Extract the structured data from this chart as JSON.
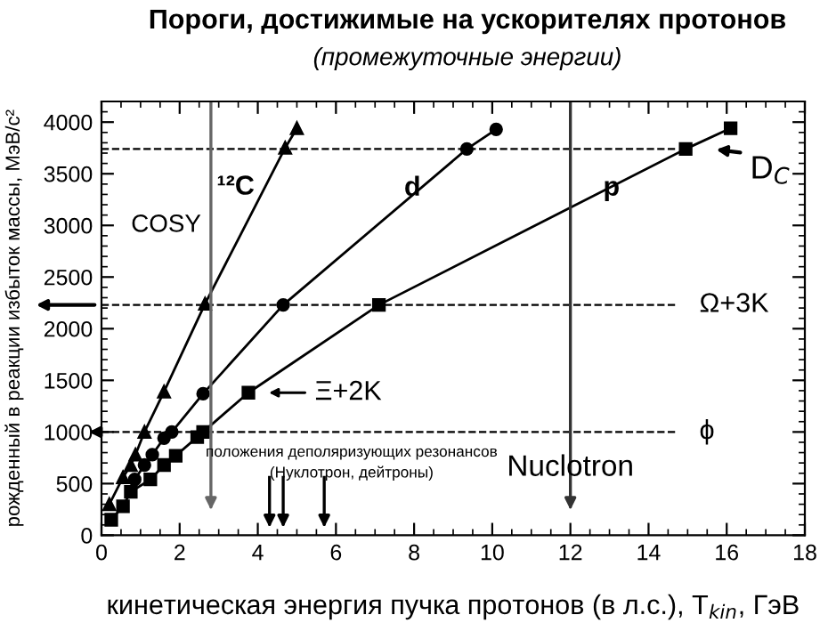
{
  "chart_data": {
    "type": "line",
    "title": "Пороги, достижимые на ускорителях протонов",
    "subtitle": "(промежуточные энергии)",
    "xlabel": "кинетическая энергия пучка протонов (в л.с.), T$_{kin}$, ГэВ",
    "ylabel": "рожденный в реакции избыток массы, МэВ/c²",
    "series": [
      {
        "name": "¹²C",
        "color": "#000000",
        "marker": "triangle",
        "x": [
          0.2,
          0.55,
          0.75,
          0.87,
          1.1,
          1.6,
          2.65,
          4.7,
          5.0
        ],
        "values": [
          300,
          560,
          680,
          780,
          1000,
          1390,
          2240,
          3750,
          3940
        ]
      },
      {
        "name": "d",
        "color": "#000000",
        "marker": "circle",
        "x": [
          0.85,
          1.1,
          1.3,
          1.6,
          1.8,
          2.6,
          4.65,
          9.35,
          10.1
        ],
        "values": [
          540,
          680,
          780,
          940,
          1000,
          1370,
          2230,
          3740,
          3930
        ]
      },
      {
        "name": "p",
        "color": "#000000",
        "marker": "square",
        "x": [
          0.25,
          0.55,
          0.75,
          1.25,
          1.6,
          1.9,
          2.45,
          2.6,
          3.76,
          7.1,
          14.95,
          16.1
        ],
        "values": [
          150,
          280,
          420,
          540,
          680,
          770,
          950,
          1000,
          1380,
          2230,
          3740,
          3940
        ]
      }
    ],
    "xlim": [
      0,
      18
    ],
    "xticks": [
      0,
      2,
      4,
      6,
      8,
      10,
      12,
      14,
      16,
      18
    ],
    "ylim": [
      0,
      4200
    ],
    "yticks": [
      0,
      500,
      1000,
      1500,
      2000,
      2500,
      3000,
      3500,
      4000
    ],
    "line_style": "solid",
    "ref_lines": [
      {
        "axis": "y",
        "value": 1000,
        "label": "ϕ",
        "line_style": "dashed"
      },
      {
        "axis": "y",
        "value": 2230,
        "label": "Ω+3K",
        "line_style": "dashed"
      },
      {
        "axis": "y",
        "value": 3740,
        "label": "D$_{C}$",
        "line_style": "dashed"
      },
      {
        "axis": "x",
        "value": 2.8,
        "label": "COSY",
        "color": "#666666"
      },
      {
        "axis": "x",
        "value": 12,
        "label": "Nuclotron",
        "color": "#333333"
      },
      {
        "axis": "x",
        "value": 4.3
      },
      {
        "axis": "x",
        "value": 4.65
      },
      {
        "axis": "x",
        "value": 5.7
      }
    ],
    "annotations": [
      {
        "text": "Ξ+2K",
        "x": 3.76,
        "y": 1380
      },
      "положения деполяризующих резонансов",
      "(Нуклотрон, дейтроны)"
    ],
    "grid": false,
    "legend": false
  }
}
